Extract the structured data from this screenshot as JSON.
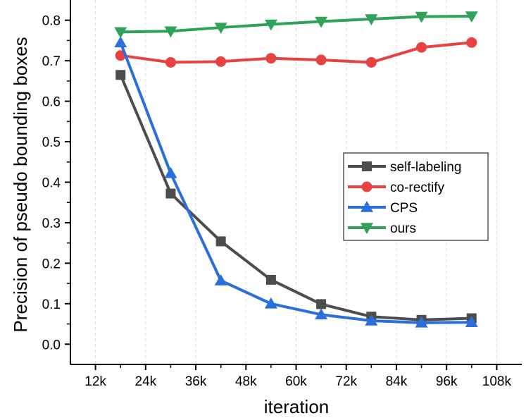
{
  "chart_data": {
    "type": "line",
    "title": "",
    "xlabel": "iteration",
    "ylabel": "Precision of pseudo bounding boxes",
    "xlim": [
      6000,
      114000
    ],
    "ylim": [
      -0.05,
      0.85
    ],
    "x_ticks": [
      12000,
      24000,
      36000,
      48000,
      60000,
      72000,
      84000,
      96000,
      108000
    ],
    "x_tick_labels": [
      "12k",
      "24k",
      "36k",
      "48k",
      "60k",
      "72k",
      "84k",
      "96k",
      "108k"
    ],
    "y_ticks": [
      0.0,
      0.1,
      0.2,
      0.3,
      0.4,
      0.5,
      0.6,
      0.7,
      0.8
    ],
    "y_tick_labels": [
      "0.0",
      "0.1",
      "0.2",
      "0.3",
      "0.4",
      "0.5",
      "0.6",
      "0.7",
      "0.8"
    ],
    "grid": "vertical-dashed",
    "legend_position": "center-right",
    "x": [
      18000,
      30000,
      42000,
      54000,
      66000,
      78000,
      90000,
      102000
    ],
    "series": [
      {
        "name": "self-labeling",
        "marker": "square",
        "color": "#4d4d4d",
        "values": [
          0.665,
          0.372,
          0.254,
          0.159,
          0.099,
          0.068,
          0.06,
          0.064
        ]
      },
      {
        "name": "co-rectify",
        "marker": "circle",
        "color": "#e84141",
        "values": [
          0.713,
          0.696,
          0.698,
          0.706,
          0.702,
          0.696,
          0.733,
          0.745
        ]
      },
      {
        "name": "CPS",
        "marker": "triangle-up",
        "color": "#2a6fdb",
        "values": [
          0.745,
          0.422,
          0.157,
          0.1,
          0.073,
          0.058,
          0.053,
          0.054
        ]
      },
      {
        "name": "ours",
        "marker": "triangle-down",
        "color": "#2fa35a",
        "values": [
          0.771,
          0.773,
          0.782,
          0.79,
          0.797,
          0.803,
          0.809,
          0.81
        ]
      }
    ]
  }
}
